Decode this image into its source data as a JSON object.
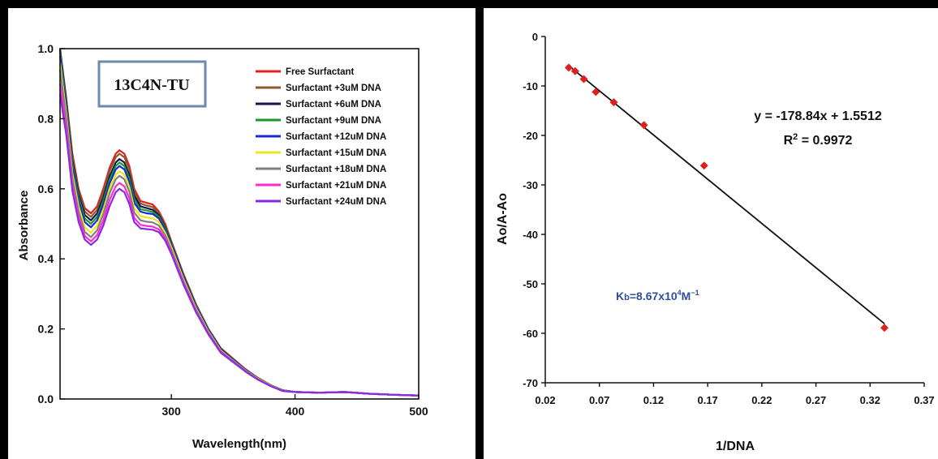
{
  "chart_data": [
    {
      "type": "line",
      "title": "",
      "xlabel": "Wavelength(nm)",
      "ylabel": "Absorbance",
      "xlim": [
        210,
        500
      ],
      "ylim": [
        0,
        1.0
      ],
      "xticks": [
        "300",
        "400",
        "500"
      ],
      "yticks": [
        "0.0",
        "0.2",
        "0.4",
        "0.6",
        "0.8",
        "1.0"
      ],
      "legend_position": "top-right",
      "annotation": "13C4N-TU",
      "x": [
        210,
        215,
        220,
        225,
        230,
        235,
        240,
        245,
        250,
        255,
        258,
        262,
        266,
        270,
        275,
        280,
        285,
        290,
        295,
        300,
        310,
        320,
        330,
        340,
        350,
        360,
        370,
        380,
        390,
        400,
        420,
        440,
        460,
        480,
        500
      ],
      "series": [
        {
          "name": "Free Surfactant",
          "color": "#e02020",
          "values": [
            1.0,
            0.86,
            0.7,
            0.6,
            0.545,
            0.53,
            0.55,
            0.6,
            0.66,
            0.7,
            0.71,
            0.7,
            0.665,
            0.6,
            0.565,
            0.56,
            0.555,
            0.535,
            0.5,
            0.45,
            0.355,
            0.27,
            0.2,
            0.145,
            0.115,
            0.085,
            0.06,
            0.04,
            0.025,
            0.02,
            0.018,
            0.02,
            0.015,
            0.012,
            0.01
          ]
        },
        {
          "name": "Surfactant +3uM DNA",
          "color": "#8b5a2b",
          "values": [
            1.0,
            0.855,
            0.69,
            0.595,
            0.535,
            0.52,
            0.54,
            0.59,
            0.65,
            0.69,
            0.7,
            0.69,
            0.655,
            0.59,
            0.558,
            0.552,
            0.548,
            0.53,
            0.495,
            0.447,
            0.352,
            0.268,
            0.199,
            0.144,
            0.114,
            0.084,
            0.06,
            0.04,
            0.025,
            0.02,
            0.018,
            0.02,
            0.015,
            0.012,
            0.01
          ]
        },
        {
          "name": "Surfactant +6uM DNA",
          "color": "#141450",
          "values": [
            0.995,
            0.85,
            0.68,
            0.585,
            0.525,
            0.51,
            0.53,
            0.575,
            0.635,
            0.675,
            0.685,
            0.675,
            0.64,
            0.58,
            0.55,
            0.545,
            0.54,
            0.525,
            0.49,
            0.445,
            0.35,
            0.266,
            0.198,
            0.143,
            0.113,
            0.084,
            0.06,
            0.04,
            0.025,
            0.02,
            0.018,
            0.02,
            0.015,
            0.012,
            0.01
          ]
        },
        {
          "name": "Surfactant +9uM DNA",
          "color": "#1a9a2a",
          "values": [
            0.99,
            0.84,
            0.67,
            0.575,
            0.515,
            0.5,
            0.52,
            0.565,
            0.625,
            0.665,
            0.675,
            0.665,
            0.63,
            0.57,
            0.542,
            0.538,
            0.534,
            0.52,
            0.487,
            0.443,
            0.348,
            0.265,
            0.197,
            0.142,
            0.112,
            0.083,
            0.059,
            0.04,
            0.025,
            0.02,
            0.018,
            0.02,
            0.015,
            0.012,
            0.01
          ]
        },
        {
          "name": "Surfactant +12uM DNA",
          "color": "#1a2ad0",
          "values": [
            0.98,
            0.83,
            0.66,
            0.565,
            0.505,
            0.49,
            0.51,
            0.555,
            0.615,
            0.655,
            0.665,
            0.655,
            0.62,
            0.56,
            0.535,
            0.53,
            0.528,
            0.515,
            0.483,
            0.44,
            0.346,
            0.263,
            0.196,
            0.141,
            0.111,
            0.082,
            0.058,
            0.039,
            0.024,
            0.02,
            0.018,
            0.02,
            0.015,
            0.012,
            0.01
          ]
        },
        {
          "name": "Surfactant +15uM DNA",
          "color": "#e8e81a",
          "values": [
            0.96,
            0.815,
            0.645,
            0.55,
            0.49,
            0.475,
            0.495,
            0.54,
            0.6,
            0.64,
            0.65,
            0.64,
            0.605,
            0.545,
            0.522,
            0.518,
            0.516,
            0.505,
            0.475,
            0.433,
            0.34,
            0.258,
            0.192,
            0.138,
            0.109,
            0.081,
            0.058,
            0.039,
            0.024,
            0.02,
            0.018,
            0.02,
            0.015,
            0.012,
            0.01
          ]
        },
        {
          "name": "Surfactant +18uM DNA",
          "color": "#808080",
          "values": [
            0.94,
            0.8,
            0.63,
            0.535,
            0.477,
            0.462,
            0.482,
            0.527,
            0.587,
            0.627,
            0.637,
            0.627,
            0.592,
            0.532,
            0.51,
            0.506,
            0.504,
            0.495,
            0.467,
            0.426,
            0.334,
            0.254,
            0.189,
            0.136,
            0.108,
            0.08,
            0.057,
            0.038,
            0.024,
            0.02,
            0.018,
            0.02,
            0.015,
            0.012,
            0.01
          ]
        },
        {
          "name": "Surfactant +21uM DNA",
          "color": "#ff2ad2",
          "values": [
            0.9,
            0.775,
            0.61,
            0.52,
            0.465,
            0.45,
            0.468,
            0.51,
            0.568,
            0.607,
            0.617,
            0.607,
            0.573,
            0.517,
            0.497,
            0.494,
            0.492,
            0.484,
            0.458,
            0.419,
            0.329,
            0.25,
            0.186,
            0.134,
            0.106,
            0.079,
            0.056,
            0.038,
            0.023,
            0.02,
            0.018,
            0.02,
            0.015,
            0.012,
            0.01
          ]
        },
        {
          "name": "Surfactant +24uM DNA",
          "color": "#8a2be2",
          "values": [
            0.87,
            0.755,
            0.595,
            0.505,
            0.455,
            0.44,
            0.455,
            0.495,
            0.55,
            0.59,
            0.6,
            0.59,
            0.557,
            0.505,
            0.487,
            0.485,
            0.483,
            0.476,
            0.452,
            0.414,
            0.325,
            0.247,
            0.184,
            0.132,
            0.105,
            0.078,
            0.055,
            0.037,
            0.023,
            0.02,
            0.018,
            0.02,
            0.015,
            0.012,
            0.01
          ]
        }
      ]
    },
    {
      "type": "scatter",
      "title": "",
      "xlabel": "1/DNA",
      "ylabel": "Ao/A-Ao",
      "xlim": [
        0.02,
        0.37
      ],
      "ylim": [
        -70,
        0
      ],
      "xticks": [
        "0.02",
        "0.07",
        "0.12",
        "0.17",
        "0.22",
        "0.27",
        "0.32",
        "0.37"
      ],
      "yticks": [
        "0",
        "-10",
        "-20",
        "-30",
        "-40",
        "-50",
        "-60",
        "-70"
      ],
      "grid": false,
      "series": [
        {
          "name": "",
          "color": "#e02020",
          "x": [
            0.0417,
            0.0476,
            0.0556,
            0.0667,
            0.0833,
            0.1111,
            0.1667,
            0.3333
          ],
          "y": [
            -6.3,
            -7.0,
            -8.6,
            -11.2,
            -13.3,
            -17.9,
            -26.1,
            -58.9
          ]
        }
      ],
      "trendline": {
        "slope": -178.84,
        "intercept": 1.5512,
        "x_range": [
          0.0417,
          0.3333
        ],
        "color": "#111111"
      },
      "equation_text": "y = -178.84x + 1.5512",
      "r2_prefix": "R",
      "r2_sup": "2",
      "r2_value": " = 0.9972",
      "kb_prefix": "K",
      "kb_sub": "b",
      "kb_mid": "=8.67x10",
      "kb_exp": "4",
      "kb_unit": "M",
      "kb_unit_exp": "−1",
      "kb_color": "#2f4f9a"
    }
  ]
}
